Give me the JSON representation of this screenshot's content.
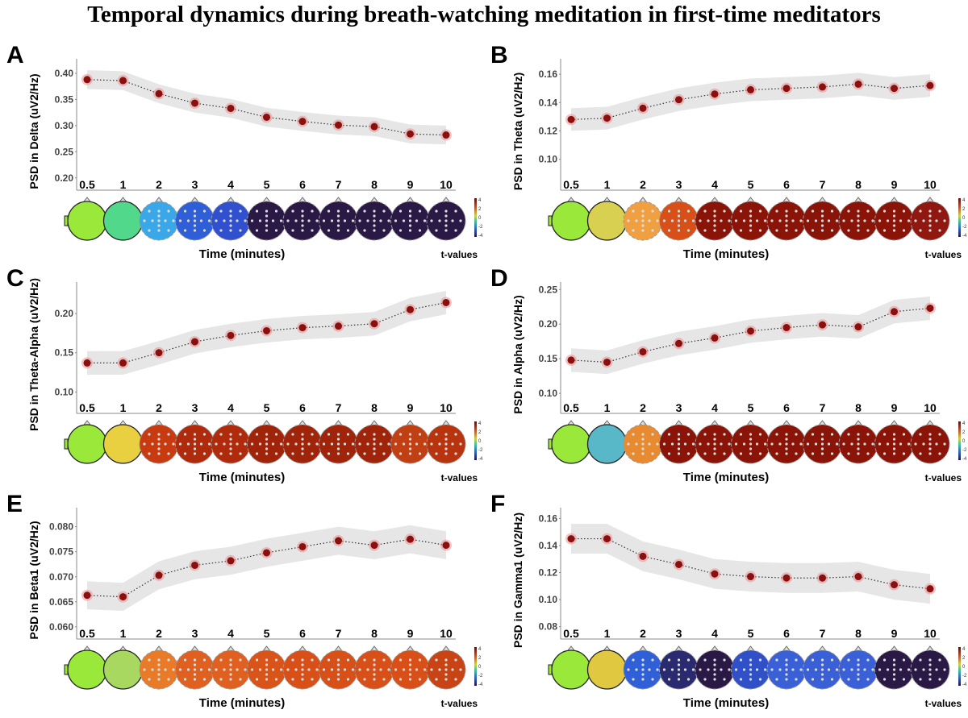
{
  "title": "Temporal dynamics during breath-watching meditation in first-time meditators",
  "chart_data": [
    {
      "type": "line",
      "panel": "A",
      "ylabel": "PSD in Delta (uV2/Hz)",
      "xlabel": "Time  (minutes)",
      "colorbar_label": "t-values",
      "colorbar_ticks": [
        "4",
        "2",
        "0",
        "-2",
        "-4"
      ],
      "categories": [
        "0.5",
        "1",
        "2",
        "3",
        "4",
        "5",
        "6",
        "7",
        "8",
        "9",
        "10"
      ],
      "values": [
        0.388,
        0.386,
        0.361,
        0.343,
        0.333,
        0.316,
        0.308,
        0.301,
        0.298,
        0.284,
        0.282
      ],
      "ci": 0.018,
      "ylim": [
        0.195,
        0.42
      ],
      "yticks": [
        "0.20",
        "0.25",
        "0.30",
        "0.35",
        "0.40"
      ],
      "topomap_colors": [
        "#9ae83a",
        "#52d88a",
        "#3aa8e8",
        "#2f5fd8",
        "#3050d0",
        "#2a1845",
        "#2a1845",
        "#2a1845",
        "#2a1845",
        "#2a1845",
        "#2a1845"
      ]
    },
    {
      "type": "line",
      "panel": "B",
      "ylabel": "PSD in Theta (uV2/Hz)",
      "xlabel": "Time  (minutes)",
      "colorbar_label": "t-values",
      "colorbar_ticks": [
        "4",
        "2",
        "0",
        "-2",
        "-4"
      ],
      "categories": [
        "0.5",
        "1",
        "2",
        "3",
        "4",
        "5",
        "6",
        "7",
        "8",
        "9",
        "10"
      ],
      "values": [
        0.128,
        0.129,
        0.136,
        0.142,
        0.146,
        0.149,
        0.15,
        0.151,
        0.153,
        0.15,
        0.152
      ],
      "ci": 0.008,
      "ylim": [
        0.085,
        0.168
      ],
      "yticks": [
        "0.10",
        "0.12",
        "0.14",
        "0.16"
      ],
      "topomap_colors": [
        "#9ae83a",
        "#d8d050",
        "#f0a040",
        "#d85018",
        "#8a1408",
        "#8a1408",
        "#8a1408",
        "#8a1408",
        "#8a1408",
        "#8a1408",
        "#901810"
      ]
    },
    {
      "type": "line",
      "panel": "C",
      "ylabel": "PSD in Theta-Alpha (uV2/Hz)",
      "xlabel": "Time  (minutes)",
      "colorbar_label": "t-values",
      "colorbar_ticks": [
        "4",
        "2",
        "0",
        "-2",
        "-4"
      ],
      "categories": [
        "0.5",
        "1",
        "2",
        "3",
        "4",
        "5",
        "6",
        "7",
        "8",
        "9",
        "10"
      ],
      "values": [
        0.137,
        0.137,
        0.15,
        0.164,
        0.172,
        0.178,
        0.182,
        0.184,
        0.187,
        0.205,
        0.214
      ],
      "ci": 0.015,
      "ylim": [
        0.085,
        0.235
      ],
      "yticks": [
        "0.10",
        "0.15",
        "0.20"
      ],
      "topomap_colors": [
        "#9ae83a",
        "#e8d040",
        "#c83a10",
        "#b02a0c",
        "#b02a0c",
        "#a0240a",
        "#a0240a",
        "#a0240a",
        "#a0240a",
        "#c04014",
        "#b8340e"
      ]
    },
    {
      "type": "line",
      "panel": "D",
      "ylabel": "PSD in Alpha (uV2/Hz)",
      "xlabel": "Time  (minutes)",
      "colorbar_label": "t-values",
      "colorbar_ticks": [
        "4",
        "2",
        "0",
        "-2",
        "-4"
      ],
      "categories": [
        "0.5",
        "1",
        "2",
        "3",
        "4",
        "5",
        "6",
        "7",
        "8",
        "9",
        "10"
      ],
      "values": [
        0.148,
        0.145,
        0.16,
        0.172,
        0.18,
        0.19,
        0.195,
        0.199,
        0.196,
        0.218,
        0.223
      ],
      "ci": 0.017,
      "ylim": [
        0.085,
        0.255
      ],
      "yticks": [
        "0.10",
        "0.15",
        "0.20",
        "0.25"
      ],
      "topomap_colors": [
        "#9ae83a",
        "#58b8c8",
        "#e88a30",
        "#8a1408",
        "#8a1408",
        "#8a1408",
        "#8a1408",
        "#8a1408",
        "#8a1408",
        "#8a1408",
        "#8a1408"
      ]
    },
    {
      "type": "line",
      "panel": "E",
      "ylabel": "PSD in Beta1 (uV2/Hz)",
      "xlabel": "Time  (minutes)",
      "colorbar_label": "t-values",
      "colorbar_ticks": [
        "4",
        "2",
        "0",
        "-2",
        "-4"
      ],
      "categories": [
        "0.5",
        "1",
        "2",
        "3",
        "4",
        "5",
        "6",
        "7",
        "8",
        "9",
        "10"
      ],
      "values": [
        0.0663,
        0.066,
        0.0703,
        0.0723,
        0.0732,
        0.0748,
        0.076,
        0.0772,
        0.0763,
        0.0775,
        0.0763
      ],
      "ci": 0.0028,
      "ylim": [
        0.0595,
        0.083
      ],
      "yticks": [
        "0.060",
        "0.065",
        "0.070",
        "0.075",
        "0.080"
      ],
      "topomap_colors": [
        "#9ae83a",
        "#a8d860",
        "#e87a28",
        "#e06020",
        "#e06020",
        "#d85418",
        "#d85018",
        "#d85018",
        "#d85018",
        "#d85018",
        "#c84414"
      ]
    },
    {
      "type": "line",
      "panel": "F",
      "ylabel": "PSD in Gamma1 (uV2/Hz)",
      "xlabel": "Time  (minutes)",
      "colorbar_label": "t-values",
      "colorbar_ticks": [
        "4",
        "2",
        "0",
        "-2",
        "-4"
      ],
      "categories": [
        "0.5",
        "1",
        "2",
        "3",
        "4",
        "5",
        "6",
        "7",
        "8",
        "9",
        "10"
      ],
      "values": [
        0.145,
        0.145,
        0.132,
        0.126,
        0.119,
        0.117,
        0.116,
        0.116,
        0.117,
        0.111,
        0.108
      ],
      "ci": 0.011,
      "ylim": [
        0.078,
        0.165
      ],
      "yticks": [
        "0.08",
        "0.10",
        "0.12",
        "0.14",
        "0.16"
      ],
      "topomap_colors": [
        "#9ae83a",
        "#e0c840",
        "#3060d8",
        "#2a2a70",
        "#2a1845",
        "#3050c8",
        "#3a60d8",
        "#3a60d8",
        "#3a60d8",
        "#2a1845",
        "#2a1845"
      ]
    }
  ]
}
